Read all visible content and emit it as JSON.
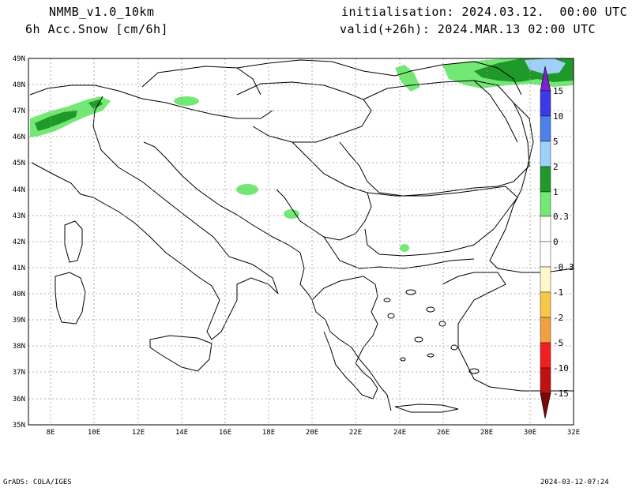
{
  "header": {
    "model": "NMMB_v1.0_10km",
    "field": "6h Acc.Snow [cm/6h]",
    "init": "initialisation: 2024.03.12.  00:00 UTC",
    "valid": "valid(+26h): 2024.MAR.13 02:00 UTC"
  },
  "axes": {
    "lat_labels": [
      "49N",
      "48N",
      "47N",
      "46N",
      "45N",
      "44N",
      "43N",
      "42N",
      "41N",
      "40N",
      "39N",
      "38N",
      "37N",
      "36N",
      "35N"
    ],
    "lon_labels": [
      "8E",
      "10E",
      "12E",
      "14E",
      "16E",
      "18E",
      "20E",
      "22E",
      "24E",
      "26E",
      "28E",
      "30E",
      "32E"
    ]
  },
  "colorbar": {
    "labels": [
      "15",
      "10",
      "5",
      "2",
      "1",
      "0.3",
      "0",
      "-0.3",
      "-1",
      "-2",
      "-5",
      "-10",
      "-15"
    ],
    "colors": [
      "#7d1fd6",
      "#3a3ae6",
      "#4f7fe8",
      "#6fa9ec",
      "#9fd0f7",
      "#1f9a2a",
      "#74e874",
      "#ffffff",
      "#ffffff",
      "#fff8c8",
      "#f5c84a",
      "#f0a040",
      "#f07830",
      "#f02020",
      "#c01010",
      "#7a0a0a"
    ]
  },
  "footer": {
    "left": "GrADS: COLA/IGES",
    "right": "2024-03-12-07:24"
  }
}
